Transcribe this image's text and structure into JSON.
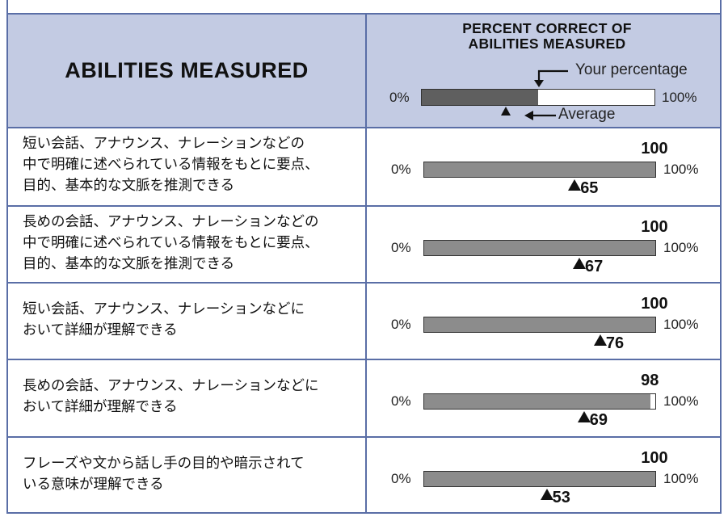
{
  "header": {
    "abilities_title": "ABILITIES MEASURED",
    "percent_title_line1": "PERCENT CORRECT OF",
    "percent_title_line2": "ABILITIES MEASURED",
    "legend": {
      "your_percentage_label": "Your percentage",
      "average_label": "Average",
      "min_label": "0%",
      "max_label": "100%",
      "example_fill_fraction": 0.5
    }
  },
  "colors": {
    "header_bg": "#c3cbe3",
    "border": "#5a6ea6",
    "bar_fill_legend": "#5f5f5f",
    "bar_fill": "#8c8c8c"
  },
  "rows": [
    {
      "line1": "短い会話、アナウンス、ナレーションなどの",
      "line2": "中で明確に述べられている情報をもとに要点、",
      "line3": "目的、基本的な文脈を推測できる",
      "score": 100,
      "average": 65,
      "min_label": "0%",
      "max_label": "100%"
    },
    {
      "line1": "長めの会話、アナウンス、ナレーションなどの",
      "line2": "中で明確に述べられている情報をもとに要点、",
      "line3": "目的、基本的な文脈を推測できる",
      "score": 100,
      "average": 67,
      "min_label": "0%",
      "max_label": "100%"
    },
    {
      "line1": "短い会話、アナウンス、ナレーションなどに",
      "line2": "おいて詳細が理解できる",
      "line3": "",
      "score": 100,
      "average": 76,
      "min_label": "0%",
      "max_label": "100%"
    },
    {
      "line1": "長めの会話、アナウンス、ナレーションなどに",
      "line2": "おいて詳細が理解できる",
      "line3": "",
      "score": 98,
      "average": 69,
      "min_label": "0%",
      "max_label": "100%"
    },
    {
      "line1": "フレーズや文から話し手の目的や暗示されて",
      "line2": "いる意味が理解できる",
      "line3": "",
      "score": 100,
      "average": 53,
      "min_label": "0%",
      "max_label": "100%"
    }
  ]
}
